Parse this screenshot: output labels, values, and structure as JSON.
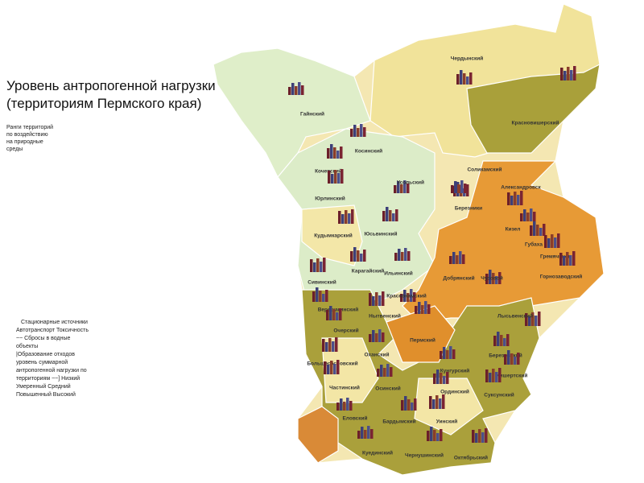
{
  "header": {
    "title_lines": [
      "Уровень антропогенной нагрузки",
      "(территориям Пермского края)"
    ]
  },
  "legend": {
    "ranks_lines": [
      "Ранги территорий",
      "по воздействию",
      "на природные",
      "среды"
    ],
    "sources_lines": [
      "Стационарные источники",
      "Автотранспорт Токсичность",
      "~~ Сбросы в водные",
      "объекты",
      "|Образование отходов",
      "уровень суммарной",
      "антропогенной нагрузки по",
      "территориям ~~] Низкий",
      "Умеренный Средний",
      "Повышенный Высокий"
    ]
  },
  "districts": [
    {
      "name": "Гайнский"
    },
    {
      "name": "Чердынский"
    },
    {
      "name": "Красновишерский"
    },
    {
      "name": "Косинский"
    },
    {
      "name": "Кочевский"
    },
    {
      "name": "Юрлинский"
    },
    {
      "name": "Усольский"
    },
    {
      "name": "Соликамский"
    },
    {
      "name": "Александровск"
    },
    {
      "name": "Березники"
    },
    {
      "name": "Юсьвинский"
    },
    {
      "name": "Кудымкарский"
    },
    {
      "name": "Кизел"
    },
    {
      "name": "Губаха"
    },
    {
      "name": "Гремячинск"
    },
    {
      "name": "Ильинский"
    },
    {
      "name": "Карагайский"
    },
    {
      "name": "Сивинский"
    },
    {
      "name": "Добрянский"
    },
    {
      "name": "Чусовой"
    },
    {
      "name": "Горнозаводский"
    },
    {
      "name": "Краснокамский"
    },
    {
      "name": "Верещагинский"
    },
    {
      "name": "Нытвенский"
    },
    {
      "name": "Пермский"
    },
    {
      "name": "Очерский"
    },
    {
      "name": "Лысьвенский"
    },
    {
      "name": "Оханский"
    },
    {
      "name": "Березовский"
    },
    {
      "name": "Большесосновский"
    },
    {
      "name": "Кунгурский"
    },
    {
      "name": "Кишертский"
    },
    {
      "name": "Частинский"
    },
    {
      "name": "Осинский"
    },
    {
      "name": "Ординский"
    },
    {
      "name": "Суксунский"
    },
    {
      "name": "Еловский"
    },
    {
      "name": "Бардымский"
    },
    {
      "name": "Уинский"
    },
    {
      "name": "Куединский"
    },
    {
      "name": "Чернушинский"
    },
    {
      "name": "Октябрьский"
    }
  ]
}
